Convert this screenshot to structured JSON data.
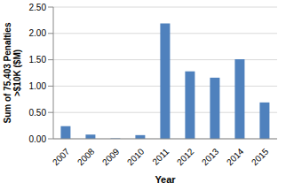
{
  "chart_data": {
    "type": "bar",
    "x_label": "Year",
    "y_label": "Sum of 75.403 Penalties >$10K ($M)",
    "categories": [
      "2007",
      "2008",
      "2009",
      "2010",
      "2011",
      "2012",
      "2013",
      "2014",
      "2015"
    ],
    "values": [
      0.24,
      0.08,
      0.01,
      0.07,
      2.19,
      1.28,
      1.16,
      1.51,
      0.69
    ],
    "color": "#4f81bd",
    "ylim": [
      0,
      2.5
    ],
    "yticks": [
      {
        "value": 0,
        "label": "0.00"
      },
      {
        "value": 0.5,
        "label": "0.50"
      },
      {
        "value": 1,
        "label": "1.00"
      },
      {
        "value": 1.5,
        "label": "1.50"
      },
      {
        "value": 2,
        "label": "2.00"
      },
      {
        "value": 2.5,
        "label": "2.50"
      }
    ],
    "grid": true
  }
}
